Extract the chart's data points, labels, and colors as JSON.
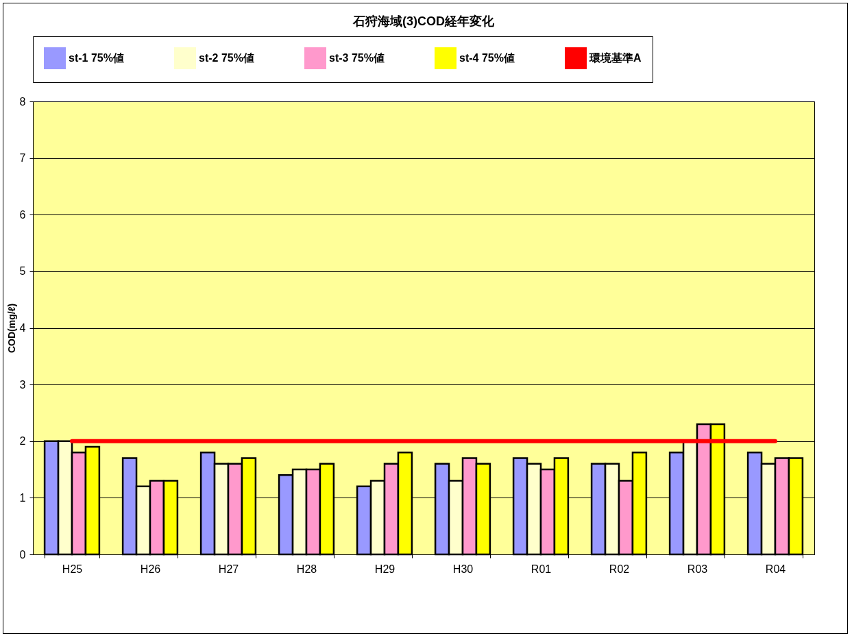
{
  "chart_data": {
    "type": "bar",
    "title": "石狩海域(3)COD経年変化",
    "ylabel": "COD(mg/ℓ)",
    "categories": [
      "H25",
      "H26",
      "H27",
      "H28",
      "H29",
      "H30",
      "R01",
      "R02",
      "R03",
      "R04"
    ],
    "series": [
      {
        "name": "st-1 75%値",
        "color": "#9999ff",
        "values": [
          2.0,
          1.7,
          1.8,
          1.4,
          1.2,
          1.6,
          1.7,
          1.6,
          1.8,
          1.8
        ]
      },
      {
        "name": "st-2 75%値",
        "color": "#ffffcc",
        "values": [
          2.0,
          1.2,
          1.6,
          1.5,
          1.3,
          1.3,
          1.6,
          1.6,
          2.0,
          1.6
        ]
      },
      {
        "name": "st-3 75%値",
        "color": "#ff99cc",
        "values": [
          1.8,
          1.3,
          1.6,
          1.5,
          1.6,
          1.7,
          1.5,
          1.3,
          2.3,
          1.7
        ]
      },
      {
        "name": "st-4 75%値",
        "color": "#ffff00",
        "values": [
          1.9,
          1.3,
          1.7,
          1.6,
          1.8,
          1.6,
          1.7,
          1.8,
          2.3,
          1.7
        ]
      },
      {
        "name": "環境基準A",
        "type": "line",
        "color": "#ff0000",
        "values": [
          2,
          2,
          2,
          2,
          2,
          2,
          2,
          2,
          2,
          2
        ]
      }
    ],
    "ylim": [
      0,
      8
    ],
    "yticks": [
      0,
      1,
      2,
      3,
      4,
      5,
      6,
      7,
      8
    ],
    "grid": "y",
    "legend": "top"
  }
}
